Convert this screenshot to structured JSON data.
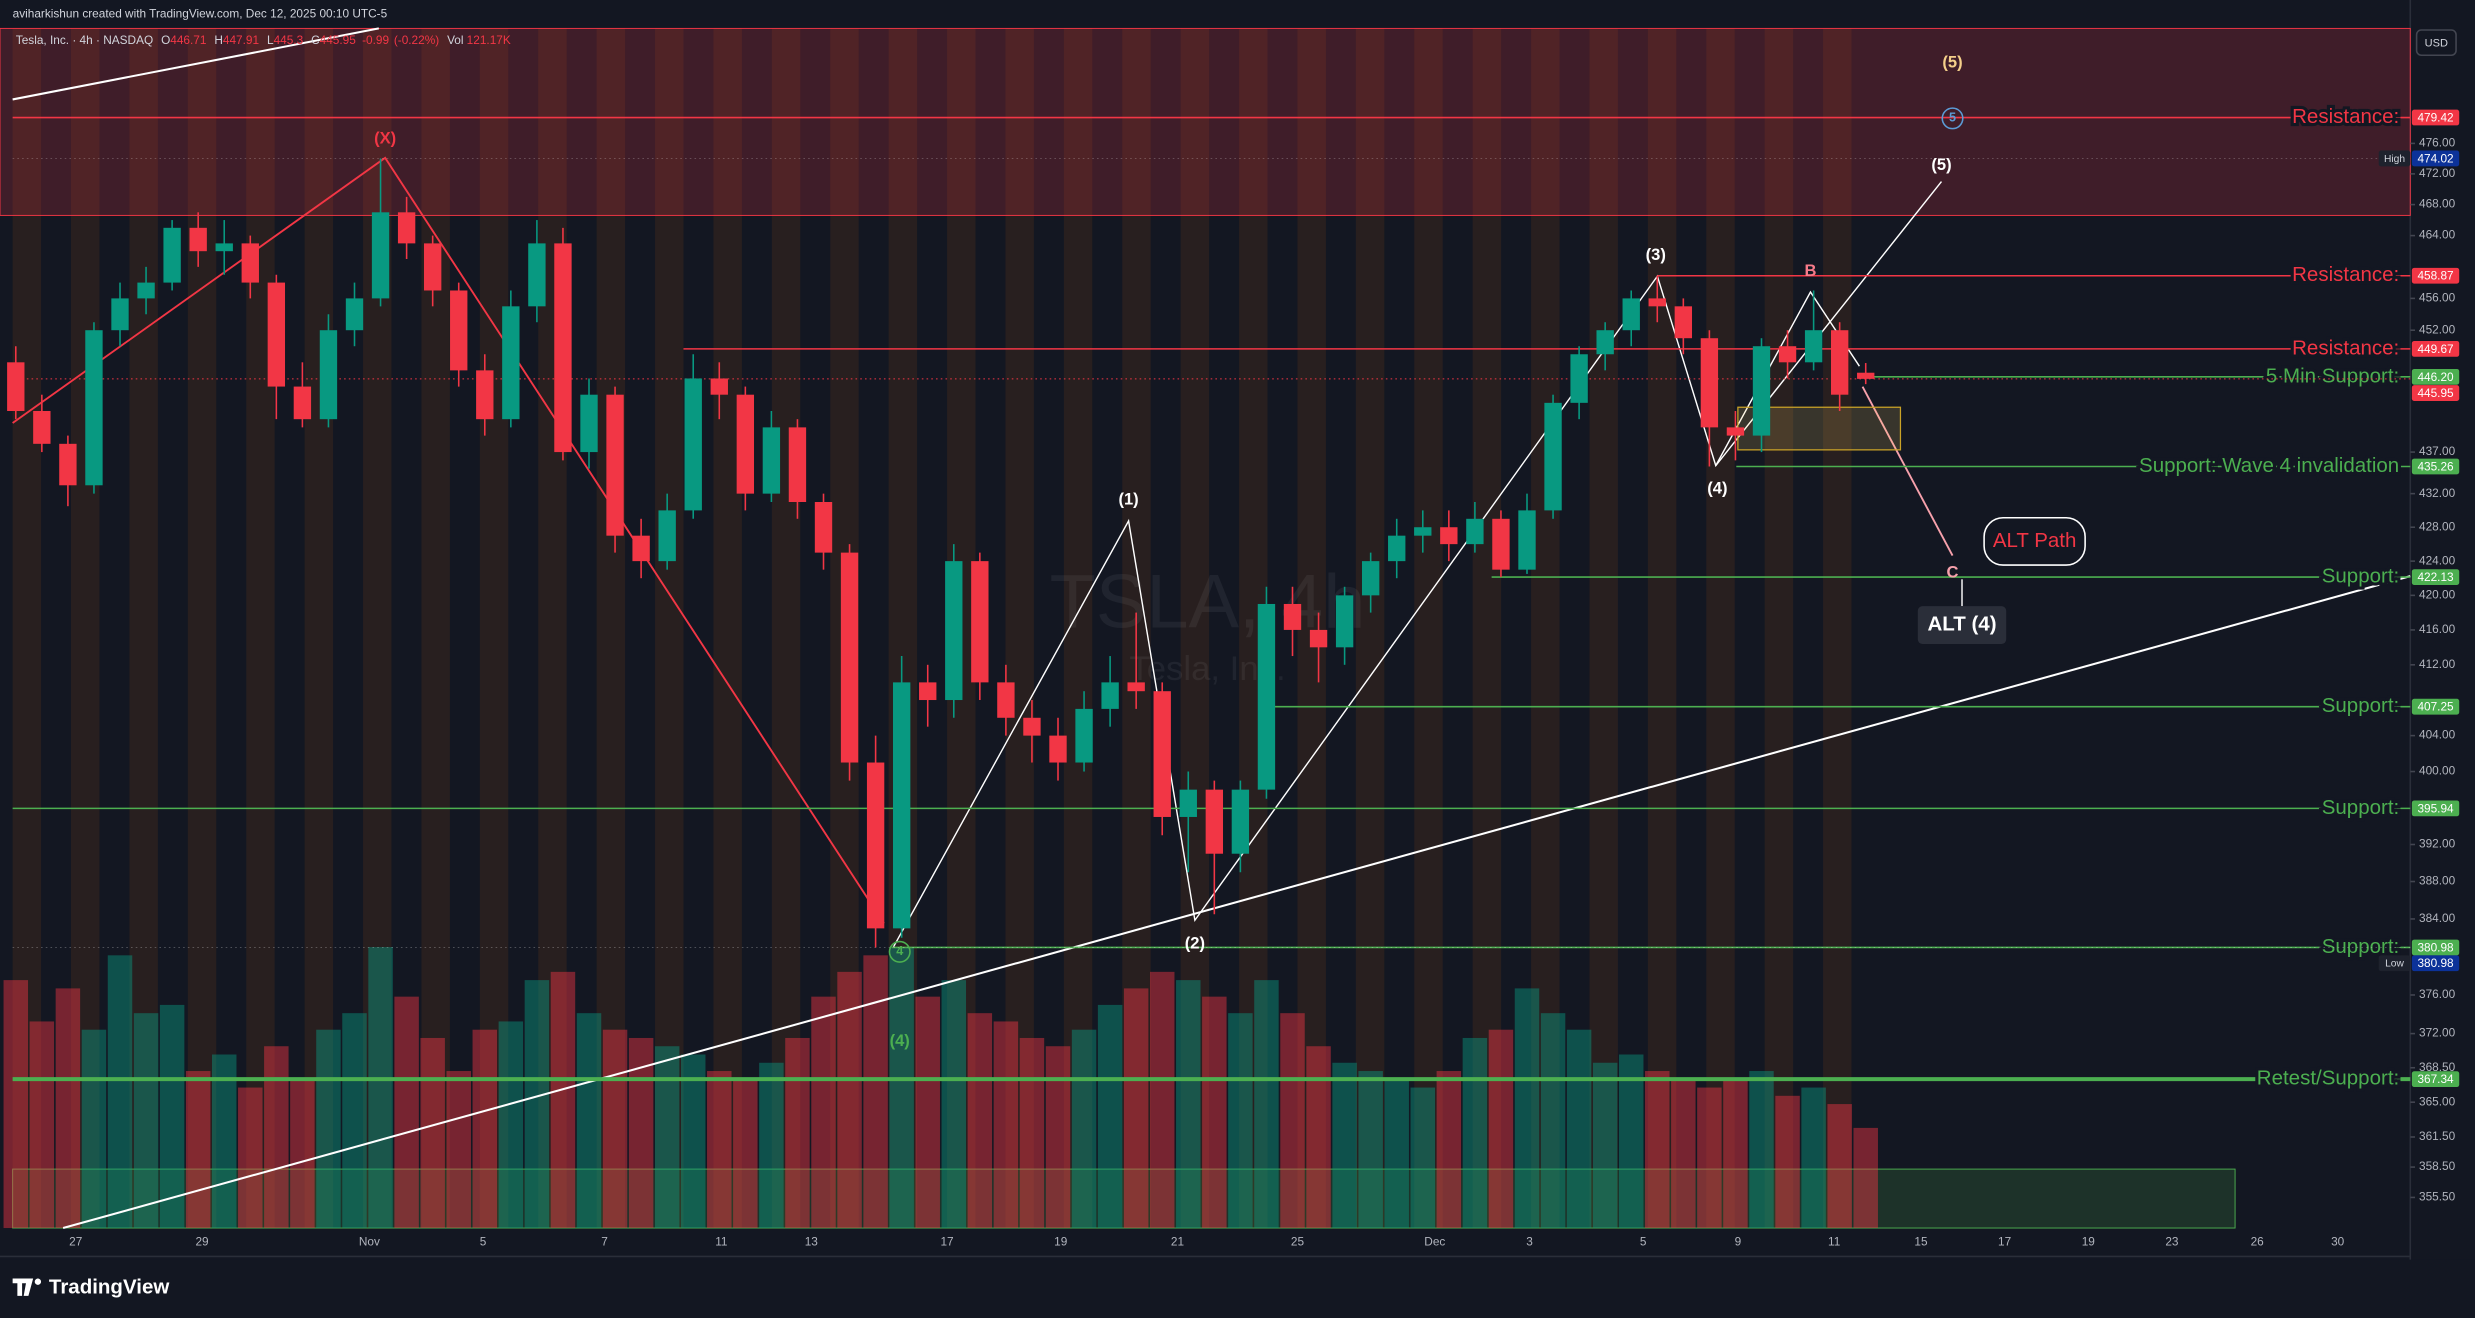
{
  "header": {
    "author": "aviharkishun created with TradingView.com, Dec 12, 2025 00:10 UTC-5"
  },
  "toolbar": {
    "currency": "USD"
  },
  "footer": {
    "brand": "TradingView"
  },
  "chart_data": {
    "type": "candlestick",
    "log": true,
    "grid": false,
    "ylim": [
      352.5,
      491.4
    ],
    "yticks": [
      {
        "value": 476,
        "label": "476.00"
      },
      {
        "value": 472,
        "label": "472.00"
      },
      {
        "value": 468,
        "label": "468.00"
      },
      {
        "value": 464,
        "label": "464.00"
      },
      {
        "value": 456,
        "label": "456.00"
      },
      {
        "value": 452,
        "label": "452.00"
      },
      {
        "value": 437,
        "label": "437.00"
      },
      {
        "value": 432,
        "label": "432.00"
      },
      {
        "value": 428,
        "label": "428.00"
      },
      {
        "value": 424,
        "label": "424.00"
      },
      {
        "value": 420,
        "label": "420.00"
      },
      {
        "value": 416,
        "label": "416.00"
      },
      {
        "value": 412,
        "label": "412.00"
      },
      {
        "value": 404,
        "label": "404.00"
      },
      {
        "value": 400,
        "label": "400.00"
      },
      {
        "value": 392,
        "label": "392.00"
      },
      {
        "value": 388,
        "label": "388.00"
      },
      {
        "value": 384,
        "label": "384.00"
      },
      {
        "value": 376,
        "label": "376.00"
      },
      {
        "value": 372,
        "label": "372.00"
      },
      {
        "value": 368.5,
        "label": "368.50"
      },
      {
        "value": 365,
        "label": "365.00"
      },
      {
        "value": 361.5,
        "label": "361.50"
      },
      {
        "value": 358.5,
        "label": "358.50"
      },
      {
        "value": 355.5,
        "label": "355.50"
      }
    ],
    "xtick_labels": [
      "27",
      "29",
      "Nov",
      "5",
      "7",
      "11",
      "13",
      "17",
      "19",
      "21",
      "25",
      "Dec",
      "3",
      "5",
      "9",
      "11",
      "15",
      "17",
      "19",
      "23",
      "26",
      "30"
    ],
    "open": [
      448,
      442,
      438,
      433,
      452,
      456,
      458,
      465,
      462,
      463,
      458,
      445,
      441,
      452,
      456,
      467,
      463,
      457,
      447,
      441,
      455,
      463,
      437,
      444,
      427,
      424,
      430,
      446,
      444,
      432,
      440,
      431,
      425,
      401,
      383,
      410,
      408,
      424,
      410,
      406,
      404,
      401,
      407,
      410,
      409,
      395,
      398,
      391,
      398,
      419,
      416,
      414,
      420,
      424,
      427,
      428,
      426,
      429,
      423,
      430,
      443,
      449,
      452,
      456,
      455,
      451,
      440,
      439,
      450,
      448,
      452,
      446.71
    ],
    "high": [
      450,
      444,
      439,
      453,
      458,
      460,
      466,
      467,
      466,
      464,
      459,
      448,
      454,
      458,
      474.02,
      469,
      464,
      458,
      449,
      457,
      466,
      465,
      446,
      445,
      429,
      432,
      449,
      448,
      445,
      442,
      441,
      432,
      426,
      404,
      413,
      412,
      426,
      425,
      412,
      408,
      406,
      409,
      413,
      418,
      410,
      400,
      399,
      399,
      421,
      421,
      418,
      421,
      425,
      429,
      430,
      430,
      431,
      430,
      432,
      444,
      450,
      453,
      457,
      458.87,
      456,
      452,
      442,
      451,
      452,
      457,
      453,
      447.91
    ],
    "low": [
      441,
      437,
      430.5,
      432,
      450,
      454,
      457,
      460,
      459,
      456,
      441,
      440,
      440,
      450,
      455,
      461,
      455,
      445,
      439,
      440,
      453,
      436,
      435,
      425,
      422,
      423,
      429,
      441,
      430,
      431,
      429,
      423,
      399,
      380.98,
      382,
      405,
      406,
      408,
      404,
      401,
      399,
      400,
      405,
      407,
      393,
      389,
      384.5,
      389,
      397,
      413,
      410,
      412,
      418,
      422,
      425,
      424,
      425,
      422.13,
      422.5,
      429,
      441,
      447,
      450,
      453,
      449,
      435.26,
      436,
      437,
      446,
      447,
      442,
      445.3
    ],
    "close": [
      442,
      438,
      433,
      452,
      456,
      458,
      465,
      462,
      463,
      458,
      445,
      441,
      452,
      456,
      467,
      463,
      457,
      447,
      441,
      455,
      463,
      437,
      444,
      427,
      424,
      430,
      446,
      444,
      432,
      440,
      431,
      425,
      401,
      383,
      410,
      408,
      424,
      410,
      406,
      404,
      401,
      407,
      410,
      409,
      395,
      398,
      391,
      398,
      419,
      416,
      414,
      420,
      424,
      427,
      428,
      426,
      429,
      423,
      430,
      443,
      449,
      452,
      456,
      455,
      451,
      440,
      439,
      450,
      448,
      452,
      444,
      445.95
    ],
    "volume": [
      300,
      250,
      290,
      240,
      330,
      260,
      270,
      190,
      210,
      170,
      220,
      180,
      240,
      260,
      340,
      280,
      230,
      190,
      240,
      250,
      300,
      310,
      260,
      240,
      230,
      220,
      210,
      190,
      180,
      200,
      230,
      280,
      310,
      330,
      340,
      280,
      300,
      260,
      250,
      230,
      220,
      240,
      270,
      290,
      310,
      300,
      280,
      260,
      300,
      260,
      220,
      200,
      190,
      180,
      170,
      190,
      230,
      240,
      290,
      260,
      240,
      200,
      210,
      190,
      180,
      170,
      180,
      190,
      160,
      170,
      150,
      121.17
    ],
    "up_color": "#089981",
    "down_color": "#f23645",
    "levels": [
      {
        "text": "Resistance:",
        "price": 479.42,
        "color": "#f23645",
        "line_width": 1
      },
      {
        "text": "Resistance:",
        "price": 458.87,
        "color": "#f23645",
        "line_width": 1
      },
      {
        "text": "Resistance:",
        "price": 449.67,
        "color": "#f23645",
        "line_width": 1
      },
      {
        "text": "5 Min Support:",
        "price": {
          "value": 446.2,
          "label": "446.20"
        },
        "color": "#4caf50",
        "line_width": 1
      },
      {
        "text": "Support: Wave 4 invalidation",
        "price": 435.26,
        "color": "#4caf50",
        "line_width": 1
      },
      {
        "text": "Support:",
        "price": 422.13,
        "color": "#4caf50",
        "line_width": 1
      },
      {
        "text": "Support:",
        "price": 407.25,
        "color": "#4caf50",
        "line_width": 1
      },
      {
        "text": "Support:",
        "price": 395.94,
        "color": "#4caf50",
        "line_width": 1
      },
      {
        "text": "Support:",
        "price": 380.98,
        "color": "#4caf50",
        "line_width": 1
      },
      {
        "text": "Retest/Support:",
        "price": 367.34,
        "color": "#4caf50",
        "line_width": 2.5
      }
    ],
    "high_low": [
      {
        "text": "High",
        "price": 474.02
      },
      {
        "text": "Low",
        "price": 380.98
      }
    ],
    "zones": [
      {
        "from": 466.6,
        "to": 491.4,
        "color": "rgba(242,54,69,0.2)"
      },
      {
        "from": 352.5,
        "to": 358.3,
        "color": "rgba(76,175,80,0.18)"
      }
    ],
    "annotations": [
      {
        "text": "(X)",
        "color": "#f23645"
      },
      {
        "text": "(1)",
        "color": "#ffffff"
      },
      {
        "text": "(2)",
        "color": "#ffffff"
      },
      {
        "text": "(3)",
        "color": "#ffffff"
      },
      {
        "text": "(4)",
        "color": "#ffffff"
      },
      {
        "text": "(5)",
        "color": "#ffffff"
      },
      {
        "text": "(5)",
        "color": "#f5d08a"
      },
      {
        "text": "5",
        "color": "#5b9bd5",
        "circled": true
      },
      {
        "text": "B",
        "color": "#f77b8a"
      },
      {
        "text": "C",
        "color": "#f7a1ac"
      },
      {
        "text": "4",
        "color": "#4caf50",
        "circled": true
      },
      {
        "text": "(4)",
        "color": "#4caf50"
      },
      {
        "text": "ALT Path",
        "color": "#f23645",
        "box": "outline"
      },
      {
        "text": "ALT (4)",
        "color": "#ffffff",
        "box": "filled"
      }
    ],
    "legend": {
      "symbol": "Tesla, Inc. · 4h · NASDAQ",
      "open_prefix": "O",
      "high_prefix": "H",
      "low_prefix": "L",
      "close_prefix": "C",
      "change": -0.99,
      "change_pct": {
        "value": -0.22,
        "label": "(-0.22%)"
      },
      "vol_prefix": "Vol",
      "volume": {
        "value": 121.17,
        "label": "121.17K"
      }
    },
    "watermark": {
      "symbol": "TSLA, 4h",
      "name": "Tesla, Inc."
    }
  }
}
